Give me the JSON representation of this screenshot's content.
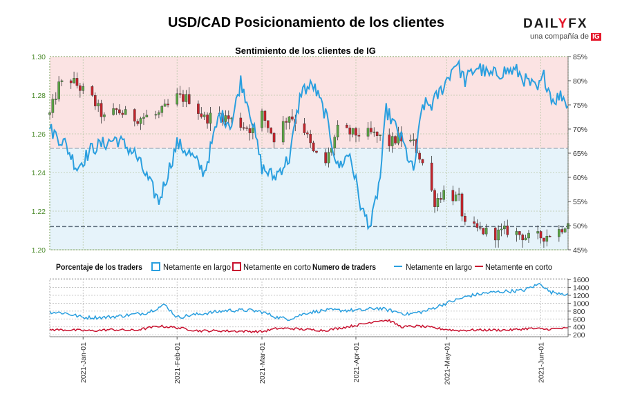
{
  "title": "USD/CAD Posicionamiento de los clientes",
  "logo": {
    "word_a": "DAIL",
    "word_b": "Y",
    "word_c": "FX",
    "sub": "una compañía de",
    "badge": "IG"
  },
  "colors": {
    "long": "#2a9fdf",
    "short": "#c8102e",
    "bull": "#5aa344",
    "bear": "#c4242c",
    "bg_long": "#e6f3fa",
    "bg_short": "#fbe3e3",
    "axis_left": "#4a8a2a"
  },
  "chart_data": [
    {
      "type": "candlestick",
      "title": "Sentimiento de los clientes de IG",
      "y_left": {
        "ticks": [
          "1.20",
          "1.22",
          "1.24",
          "1.26",
          "1.28",
          "1.30"
        ],
        "range": [
          1.2,
          1.3
        ]
      },
      "y_right": {
        "ticks": [
          "45%",
          "50%",
          "55%",
          "60%",
          "65%",
          "70%",
          "75%",
          "80%",
          "85%"
        ],
        "range": [
          45,
          85
        ]
      },
      "x_range": [
        "2020-12-21",
        "2021-06-10"
      ],
      "grid": true,
      "ref_lines": {
        "price": 1.212,
        "percent": 66
      },
      "price_keys": [
        [
          "2020-12-21",
          1.27
        ],
        [
          "2020-12-24",
          1.285
        ],
        [
          "2020-12-28",
          1.288
        ],
        [
          "2021-01-04",
          1.278
        ],
        [
          "2021-01-08",
          1.268
        ],
        [
          "2021-01-12",
          1.272
        ],
        [
          "2021-01-18",
          1.268
        ],
        [
          "2021-01-26",
          1.27
        ],
        [
          "2021-02-01",
          1.279
        ],
        [
          "2021-02-05",
          1.278
        ],
        [
          "2021-02-10",
          1.268
        ],
        [
          "2021-02-15",
          1.27
        ],
        [
          "2021-02-22",
          1.265
        ],
        [
          "2021-02-26",
          1.262
        ],
        [
          "2021-03-01",
          1.27
        ],
        [
          "2021-03-05",
          1.258
        ],
        [
          "2021-03-10",
          1.27
        ],
        [
          "2021-03-15",
          1.262
        ],
        [
          "2021-03-18",
          1.25
        ],
        [
          "2021-03-22",
          1.245
        ],
        [
          "2021-03-26",
          1.262
        ],
        [
          "2021-03-31",
          1.26
        ],
        [
          "2021-04-06",
          1.26
        ],
        [
          "2021-04-09",
          1.258
        ],
        [
          "2021-04-12",
          1.255
        ],
        [
          "2021-04-15",
          1.258
        ],
        [
          "2021-04-20",
          1.255
        ],
        [
          "2021-04-23",
          1.245
        ],
        [
          "2021-04-27",
          1.225
        ],
        [
          "2021-04-30",
          1.23
        ],
        [
          "2021-05-05",
          1.226
        ],
        [
          "2021-05-07",
          1.212
        ],
        [
          "2021-05-12",
          1.21
        ],
        [
          "2021-05-17",
          1.208
        ],
        [
          "2021-05-21",
          1.21
        ],
        [
          "2021-05-25",
          1.208
        ],
        [
          "2021-05-28",
          1.206
        ],
        [
          "2021-06-02",
          1.207
        ],
        [
          "2021-06-07",
          1.21
        ],
        [
          "2021-06-10",
          1.215
        ]
      ],
      "pct_long_keys": [
        [
          "2020-12-21",
          70
        ],
        [
          "2020-12-26",
          67
        ],
        [
          "2020-12-30",
          62
        ],
        [
          "2021-01-04",
          66
        ],
        [
          "2021-01-08",
          67
        ],
        [
          "2021-01-12",
          68
        ],
        [
          "2021-01-18",
          65
        ],
        [
          "2021-01-22",
          60
        ],
        [
          "2021-01-26",
          55
        ],
        [
          "2021-02-01",
          67
        ],
        [
          "2021-02-05",
          65
        ],
        [
          "2021-02-10",
          61
        ],
        [
          "2021-02-15",
          73
        ],
        [
          "2021-02-19",
          71
        ],
        [
          "2021-02-22",
          80
        ],
        [
          "2021-02-25",
          74
        ],
        [
          "2021-03-01",
          62
        ],
        [
          "2021-03-05",
          60
        ],
        [
          "2021-03-10",
          64
        ],
        [
          "2021-03-14",
          78
        ],
        [
          "2021-03-18",
          79
        ],
        [
          "2021-03-22",
          73
        ],
        [
          "2021-03-26",
          62
        ],
        [
          "2021-03-30",
          65
        ],
        [
          "2021-04-03",
          53
        ],
        [
          "2021-04-06",
          50
        ],
        [
          "2021-04-09",
          60
        ],
        [
          "2021-04-11",
          74
        ],
        [
          "2021-04-16",
          68
        ],
        [
          "2021-04-20",
          61
        ],
        [
          "2021-04-23",
          75
        ],
        [
          "2021-04-26",
          75
        ],
        [
          "2021-04-30",
          79
        ],
        [
          "2021-05-04",
          84
        ],
        [
          "2021-05-07",
          80
        ],
        [
          "2021-05-11",
          83
        ],
        [
          "2021-05-15",
          81
        ],
        [
          "2021-05-20",
          82
        ],
        [
          "2021-05-24",
          82
        ],
        [
          "2021-05-27",
          80
        ],
        [
          "2021-05-31",
          78
        ],
        [
          "2021-06-02",
          81
        ],
        [
          "2021-06-05",
          76
        ],
        [
          "2021-06-08",
          77
        ],
        [
          "2021-06-10",
          75
        ]
      ]
    },
    {
      "type": "line",
      "title": "Numero de traders",
      "y_right": {
        "ticks": [
          "200",
          "400",
          "600",
          "800",
          "1000",
          "1200",
          "1400",
          "1600"
        ],
        "range": [
          150,
          1620
        ]
      },
      "x_ticks": [
        "2021-Jan-01",
        "2021-Feb-01",
        "2021-Mar-01",
        "2021-Apr-01",
        "2021-May-01",
        "2021-Jun-01"
      ],
      "grid": true,
      "series": [
        {
          "name": "Netamente en largo",
          "color": "#2a9fdf",
          "keys": [
            [
              "2020-12-21",
              780
            ],
            [
              "2020-12-26",
              750
            ],
            [
              "2021-01-01",
              640
            ],
            [
              "2021-01-08",
              640
            ],
            [
              "2021-01-14",
              680
            ],
            [
              "2021-01-22",
              760
            ],
            [
              "2021-01-28",
              960
            ],
            [
              "2021-02-01",
              640
            ],
            [
              "2021-02-06",
              700
            ],
            [
              "2021-02-12",
              760
            ],
            [
              "2021-02-18",
              820
            ],
            [
              "2021-02-25",
              820
            ],
            [
              "2021-03-01",
              780
            ],
            [
              "2021-03-06",
              640
            ],
            [
              "2021-03-10",
              600
            ],
            [
              "2021-03-16",
              760
            ],
            [
              "2021-03-22",
              820
            ],
            [
              "2021-03-28",
              820
            ],
            [
              "2021-04-03",
              820
            ],
            [
              "2021-04-08",
              880
            ],
            [
              "2021-04-12",
              820
            ],
            [
              "2021-04-18",
              720
            ],
            [
              "2021-04-24",
              800
            ],
            [
              "2021-04-30",
              980
            ],
            [
              "2021-05-04",
              1080
            ],
            [
              "2021-05-08",
              1180
            ],
            [
              "2021-05-14",
              1260
            ],
            [
              "2021-05-20",
              1300
            ],
            [
              "2021-05-26",
              1320
            ],
            [
              "2021-06-01",
              1500
            ],
            [
              "2021-06-04",
              1280
            ],
            [
              "2021-06-08",
              1260
            ],
            [
              "2021-06-10",
              1200
            ]
          ]
        },
        {
          "name": "Netamente en corto",
          "color": "#c8102e",
          "keys": [
            [
              "2020-12-21",
              330
            ],
            [
              "2020-12-28",
              320
            ],
            [
              "2021-01-04",
              300
            ],
            [
              "2021-01-10",
              330
            ],
            [
              "2021-01-18",
              310
            ],
            [
              "2021-01-26",
              420
            ],
            [
              "2021-02-01",
              380
            ],
            [
              "2021-02-08",
              300
            ],
            [
              "2021-02-15",
              300
            ],
            [
              "2021-02-22",
              290
            ],
            [
              "2021-03-01",
              280
            ],
            [
              "2021-03-06",
              360
            ],
            [
              "2021-03-10",
              360
            ],
            [
              "2021-03-16",
              330
            ],
            [
              "2021-03-22",
              310
            ],
            [
              "2021-03-29",
              400
            ],
            [
              "2021-04-04",
              480
            ],
            [
              "2021-04-08",
              560
            ],
            [
              "2021-04-12",
              560
            ],
            [
              "2021-04-16",
              400
            ],
            [
              "2021-04-22",
              420
            ],
            [
              "2021-04-28",
              360
            ],
            [
              "2021-05-04",
              310
            ],
            [
              "2021-05-10",
              320
            ],
            [
              "2021-05-16",
              320
            ],
            [
              "2021-05-22",
              320
            ],
            [
              "2021-05-28",
              360
            ],
            [
              "2021-06-03",
              340
            ],
            [
              "2021-06-08",
              360
            ],
            [
              "2021-06-10",
              360
            ]
          ]
        }
      ]
    }
  ],
  "legend": {
    "pct_label": "Porcentaje de los traders",
    "pct_long": "Netamente en largo",
    "pct_short": "Netamente en corto",
    "count_label": "Numero de traders",
    "count_long": "Netamente en largo",
    "count_short": "Netamente en corto"
  }
}
